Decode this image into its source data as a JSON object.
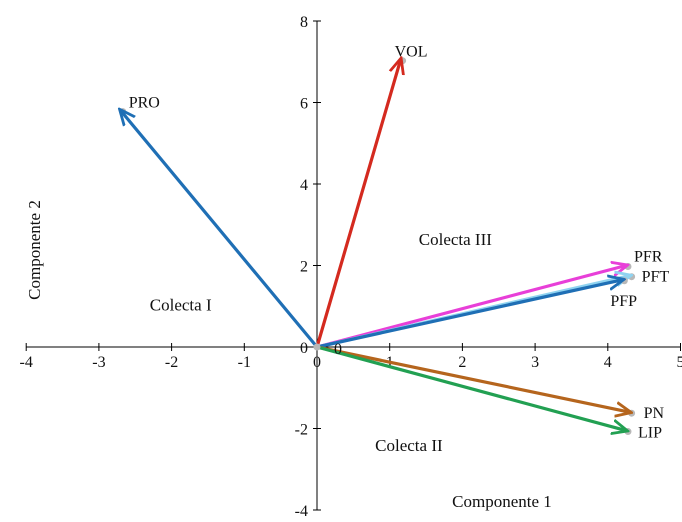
{
  "chart_data": {
    "type": "biplot",
    "xlabel": "Componente  1",
    "ylabel": "Componente  2",
    "xlim": [
      -4,
      5
    ],
    "ylim": [
      -4,
      8
    ],
    "x_ticks": [
      -4,
      -3,
      -2,
      -1,
      0,
      1,
      2,
      3,
      4,
      5
    ],
    "y_ticks": [
      -4,
      -2,
      0,
      2,
      4,
      6,
      8
    ],
    "origin_label": "0",
    "grid": false,
    "legend": "none",
    "vectors": [
      {
        "name": "PRO",
        "x": -2.7,
        "y": 5.8,
        "color": "#1f6fb5"
      },
      {
        "name": "VOL",
        "x": 1.15,
        "y": 7.05,
        "color": "#d42a1f"
      },
      {
        "name": "PFR",
        "x": 4.25,
        "y": 2.0,
        "color": "#e83fd8"
      },
      {
        "name": "PFT",
        "x": 4.3,
        "y": 1.75,
        "color": "#8fd3f0"
      },
      {
        "name": "PFP",
        "x": 4.2,
        "y": 1.65,
        "color": "#1f6fb5"
      },
      {
        "name": "PN",
        "x": 4.3,
        "y": -1.6,
        "color": "#b5651d"
      },
      {
        "name": "LIP",
        "x": 4.25,
        "y": -2.05,
        "color": "#22a052"
      }
    ],
    "annotations": [
      {
        "text": "Colecta I",
        "x": -2.3,
        "y": 0.9
      },
      {
        "text": "Colecta II",
        "x": 0.8,
        "y": -2.55
      },
      {
        "text": "Colecta III",
        "x": 1.4,
        "y": 2.5
      }
    ]
  }
}
